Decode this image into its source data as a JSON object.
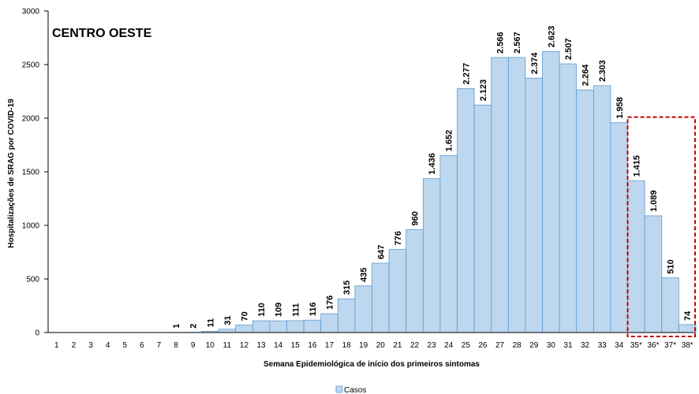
{
  "chart_data": {
    "type": "bar",
    "title": "CENTRO OESTE",
    "xlabel": "Semana Epidemiológica  de início dos primeiros sintomas",
    "ylabel": "Hospitalizações  de SRAG por COVID-19",
    "ylim": [
      0,
      3000
    ],
    "yticks": [
      "0",
      "500",
      "1000",
      "1500",
      "2000",
      "2500",
      "3000"
    ],
    "ytick_values": [
      0,
      500,
      1000,
      1500,
      2000,
      2500,
      3000
    ],
    "grid": false,
    "legend_position": "bottom",
    "categories": [
      "1",
      "2",
      "3",
      "4",
      "5",
      "6",
      "7",
      "8",
      "9",
      "10",
      "11",
      "12",
      "13",
      "14",
      "15",
      "16",
      "17",
      "18",
      "19",
      "20",
      "21",
      "22",
      "23",
      "24",
      "25",
      "26",
      "27",
      "28",
      "29",
      "30",
      "31",
      "32",
      "33",
      "34",
      "35*",
      "36*",
      "37*",
      "38*"
    ],
    "series": [
      {
        "name": "Casos",
        "color": "#bdd7ee",
        "edge_color": "#5b9bd5",
        "values": [
          0,
          0,
          0,
          0,
          0,
          0,
          0,
          1,
          2,
          11,
          31,
          70,
          110,
          109,
          111,
          116,
          176,
          315,
          435,
          647,
          776,
          960,
          1436,
          1652,
          2277,
          2123,
          2566,
          2567,
          2374,
          2623,
          2507,
          2264,
          2303,
          1958,
          1415,
          1089,
          510,
          74
        ],
        "labels": [
          "",
          "",
          "",
          "",
          "",
          "",
          "",
          "1",
          "2",
          "11",
          "31",
          "70",
          "110",
          "109",
          "111",
          "116",
          "176",
          "315",
          "435",
          "647",
          "776",
          "960",
          "1.436",
          "1.652",
          "2.277",
          "2.123",
          "2.566",
          "2.567",
          "2.374",
          "2.623",
          "2.507",
          "2.264",
          "2.303",
          "1.958",
          "1.415",
          "1.089",
          "510",
          "74"
        ]
      }
    ],
    "highlight": {
      "from_category": "35*",
      "to_category": "38*",
      "style": "dashed",
      "color": "#c00000"
    }
  }
}
